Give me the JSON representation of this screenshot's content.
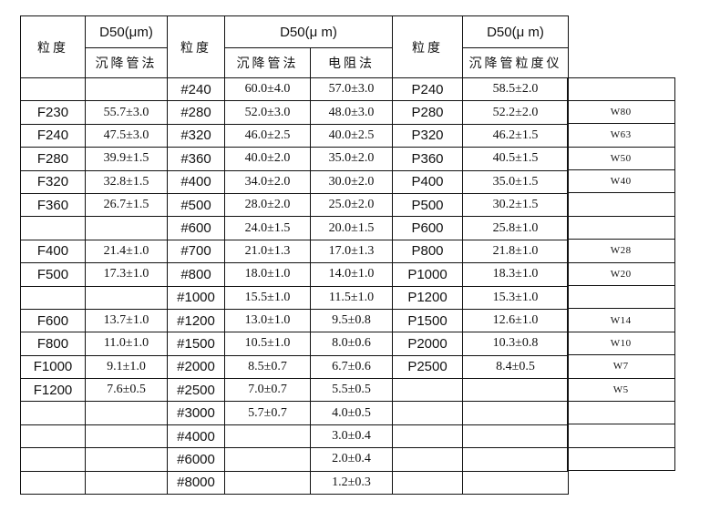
{
  "table": {
    "headers": {
      "f_size_label": "粒度",
      "f_d50": "D50(μm)",
      "f_method": "沉降管法",
      "grit_size_label": "粒度",
      "grit_d50": "D50(μ m)",
      "grit_method_sedimentation": "沉降管法",
      "grit_method_resistance": "电阻法",
      "p_size_label": "粒度",
      "p_d50": "D50(μ m)",
      "p_method": "沉降管粒度仪"
    },
    "rows": [
      {
        "f": "",
        "fv": "",
        "g": "#240",
        "gv1": "60.0±4.0",
        "gv2": "57.0±3.0",
        "p": "P240",
        "pv": "58.5±2.0",
        "w": ""
      },
      {
        "f": "F230",
        "fv": "55.7±3.0",
        "g": "#280",
        "gv1": "52.0±3.0",
        "gv2": "48.0±3.0",
        "p": "P280",
        "pv": "52.2±2.0",
        "w": "W80"
      },
      {
        "f": "F240",
        "fv": "47.5±3.0",
        "g": "#320",
        "gv1": "46.0±2.5",
        "gv2": "40.0±2.5",
        "p": "P320",
        "pv": "46.2±1.5",
        "w": "W63"
      },
      {
        "f": "F280",
        "fv": "39.9±1.5",
        "g": "#360",
        "gv1": "40.0±2.0",
        "gv2": "35.0±2.0",
        "p": "P360",
        "pv": "40.5±1.5",
        "w": "W50"
      },
      {
        "f": "F320",
        "fv": "32.8±1.5",
        "g": "#400",
        "gv1": "34.0±2.0",
        "gv2": "30.0±2.0",
        "p": "P400",
        "pv": "35.0±1.5",
        "w": "W40"
      },
      {
        "f": "F360",
        "fv": "26.7±1.5",
        "g": "#500",
        "gv1": "28.0±2.0",
        "gv2": "25.0±2.0",
        "p": "P500",
        "pv": "30.2±1.5",
        "w": ""
      },
      {
        "f": "",
        "fv": "",
        "g": "#600",
        "gv1": "24.0±1.5",
        "gv2": "20.0±1.5",
        "p": "P600",
        "pv": "25.8±1.0",
        "w": ""
      },
      {
        "f": "F400",
        "fv": "21.4±1.0",
        "g": "#700",
        "gv1": "21.0±1.3",
        "gv2": "17.0±1.3",
        "p": "P800",
        "pv": "21.8±1.0",
        "w": "W28"
      },
      {
        "f": "F500",
        "fv": "17.3±1.0",
        "g": "#800",
        "gv1": "18.0±1.0",
        "gv2": "14.0±1.0",
        "p": "P1000",
        "pv": "18.3±1.0",
        "w": "W20"
      },
      {
        "f": "",
        "fv": "",
        "g": "#1000",
        "gv1": "15.5±1.0",
        "gv2": "11.5±1.0",
        "p": "P1200",
        "pv": "15.3±1.0",
        "w": ""
      },
      {
        "f": "F600",
        "fv": "13.7±1.0",
        "g": "#1200",
        "gv1": "13.0±1.0",
        "gv2": "9.5±0.8",
        "p": "P1500",
        "pv": "12.6±1.0",
        "w": "W14"
      },
      {
        "f": "F800",
        "fv": "11.0±1.0",
        "g": "#1500",
        "gv1": "10.5±1.0",
        "gv2": "8.0±0.6",
        "p": "P2000",
        "pv": "10.3±0.8",
        "w": "W10"
      },
      {
        "f": "F1000",
        "fv": "9.1±1.0",
        "g": "#2000",
        "gv1": "8.5±0.7",
        "gv2": "6.7±0.6",
        "p": "P2500",
        "pv": "8.4±0.5",
        "w": "W7"
      },
      {
        "f": "F1200",
        "fv": "7.6±0.5",
        "g": "#2500",
        "gv1": "7.0±0.7",
        "gv2": "5.5±0.5",
        "p": "",
        "pv": "",
        "w": "W5"
      },
      {
        "f": "",
        "fv": "",
        "g": "#3000",
        "gv1": "5.7±0.7",
        "gv2": "4.0±0.5",
        "p": "",
        "pv": "",
        "w": ""
      },
      {
        "f": "",
        "fv": "",
        "g": "#4000",
        "gv1": "",
        "gv2": "3.0±0.4",
        "p": "",
        "pv": "",
        "w": ""
      },
      {
        "f": "",
        "fv": "",
        "g": "#6000",
        "gv1": "",
        "gv2": "2.0±0.4",
        "p": "",
        "pv": "",
        "w": ""
      },
      {
        "f": "",
        "fv": "",
        "g": "#8000",
        "gv1": "",
        "gv2": "1.2±0.3",
        "p": "",
        "pv": "",
        "w": null
      }
    ]
  }
}
